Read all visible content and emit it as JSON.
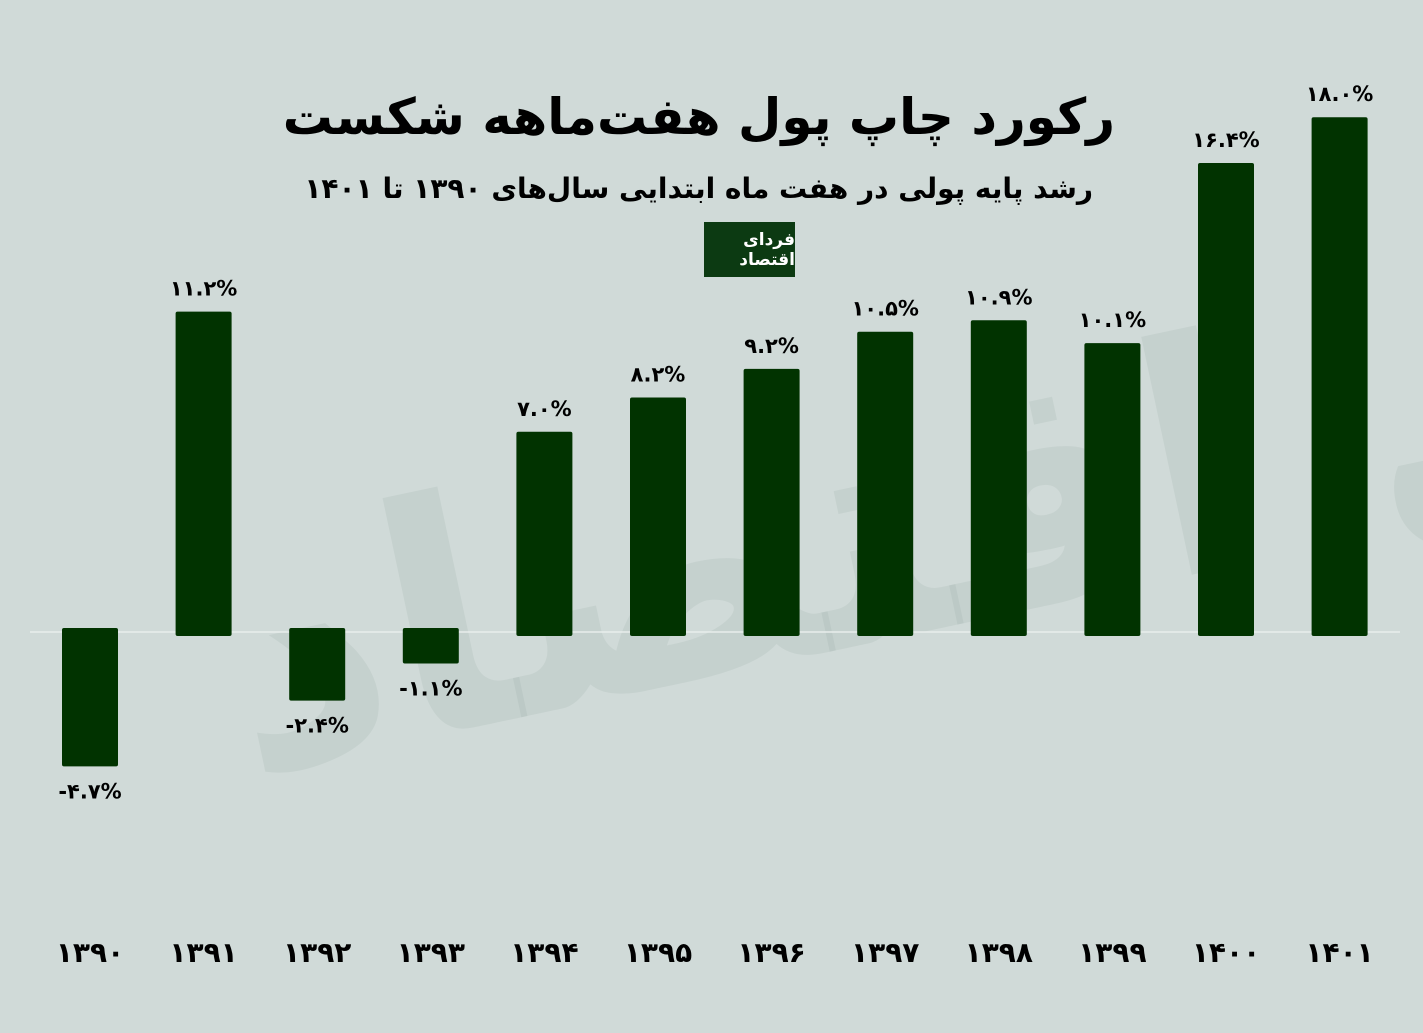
{
  "logo_text": "فردای اقتصاد",
  "chart_data": {
    "type": "bar",
    "title": "رکورد چاپ پول هفت‌ماهه شکست",
    "subtitle": "رشد پایه پولی در هفت ماه ابتدایی سال‌های ۱۳۹۰ تا ۱۴۰۱",
    "xlabel": "",
    "ylabel": "",
    "categories": [
      "۱۳۹۰",
      "۱۳۹۱",
      "۱۳۹۲",
      "۱۳۹۳",
      "۱۳۹۴",
      "۱۳۹۵",
      "۱۳۹۶",
      "۱۳۹۷",
      "۱۳۹۸",
      "۱۳۹۹",
      "۱۴۰۰",
      "۱۴۰۱"
    ],
    "values": [
      -4.7,
      11.2,
      -2.4,
      -1.1,
      7.0,
      8.2,
      9.2,
      10.5,
      10.9,
      10.1,
      16.4,
      18.0
    ],
    "data_labels": [
      "-۴.۷%",
      "۱۱.۲%",
      "-۲.۴%",
      "-۱.۱%",
      "۷.۰%",
      "۸.۲%",
      "۹.۲%",
      "۱۰.۵%",
      "۱۰.۹%",
      "۱۰.۱%",
      "۱۶.۴%",
      "۱۸.۰%"
    ],
    "ylim": [
      -5,
      18
    ],
    "grid": false,
    "colors": {
      "bar": "#013300",
      "background": "#d0dad8"
    }
  }
}
